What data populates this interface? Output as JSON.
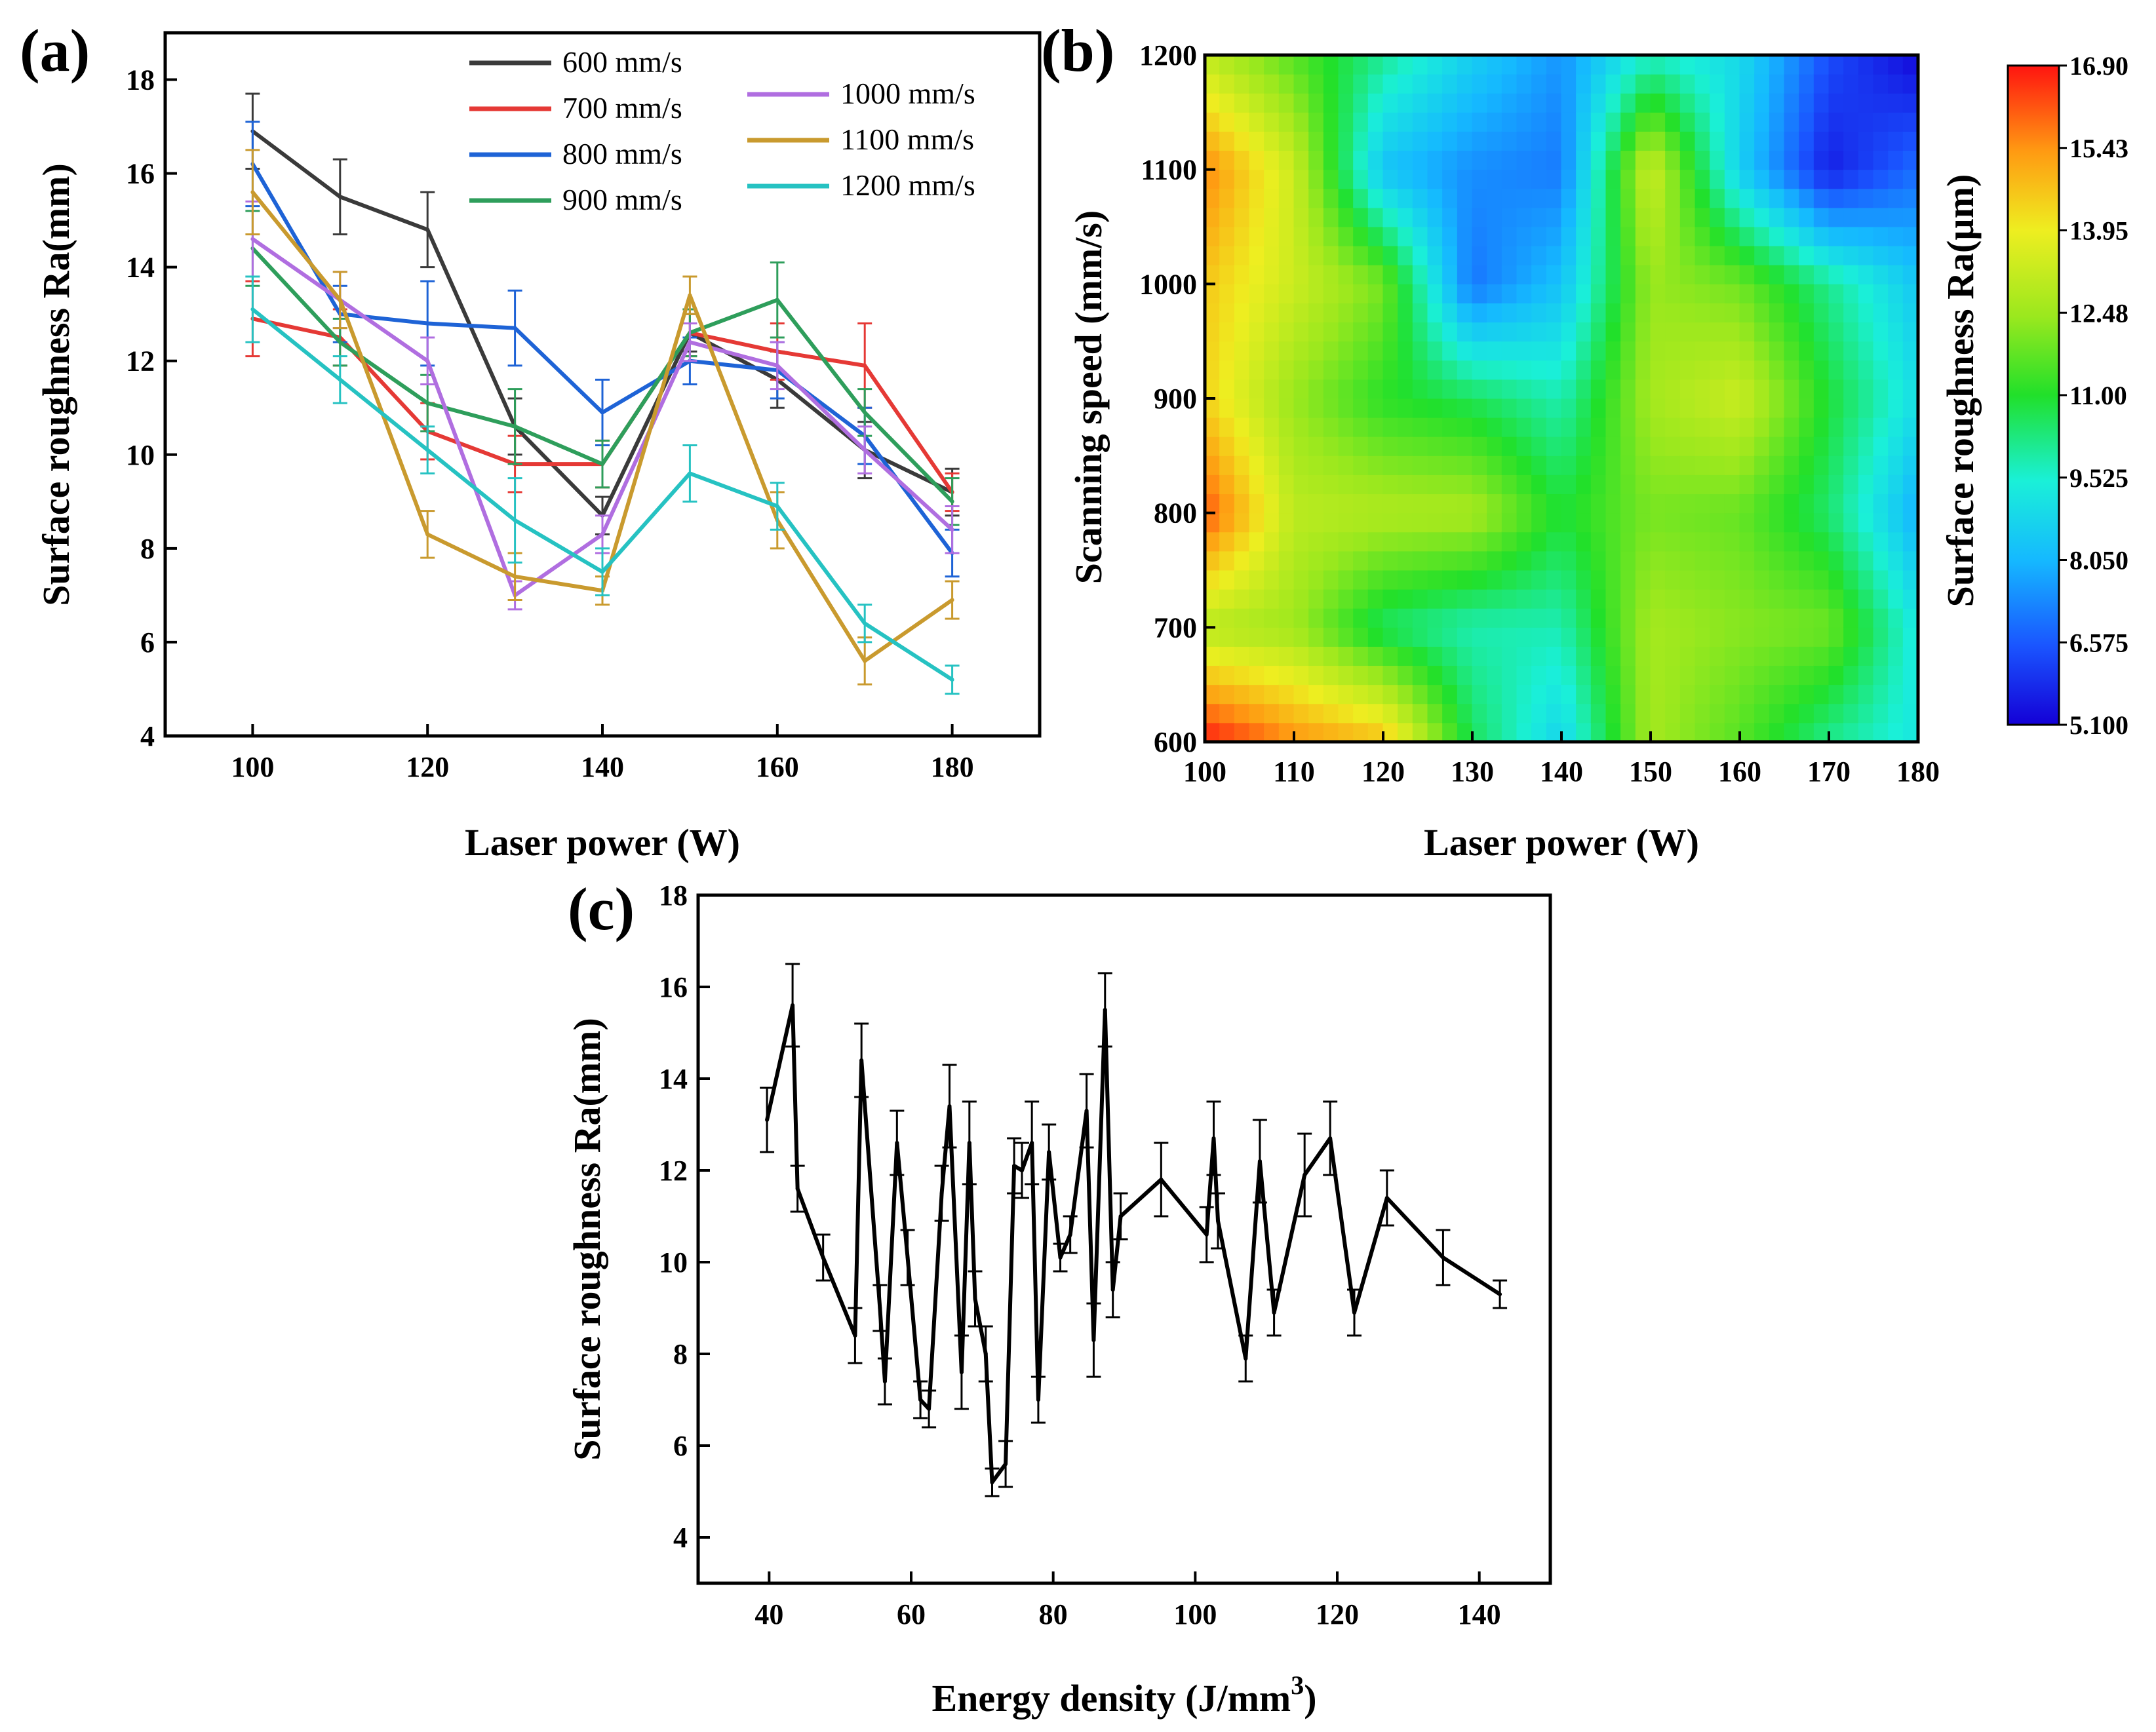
{
  "chart_data": [
    {
      "id": "a",
      "type": "line",
      "panel_label": "(a)",
      "xlabel": "Laser power (W)",
      "ylabel": "Surface roughness Ra(mm)",
      "xlim": [
        90,
        190
      ],
      "ylim": [
        4,
        19
      ],
      "xticks": [
        100,
        120,
        140,
        160,
        180
      ],
      "yticks": [
        4,
        6,
        8,
        10,
        12,
        14,
        16,
        18
      ],
      "x": [
        100,
        110,
        120,
        130,
        140,
        150,
        160,
        170,
        180
      ],
      "legend_position": "top-center",
      "series": [
        {
          "name": "600 mm/s",
          "color": "#3a3a3a",
          "values": [
            16.9,
            15.5,
            14.8,
            10.6,
            8.7,
            12.6,
            11.6,
            10.1,
            9.2
          ],
          "errors": [
            0.8,
            0.8,
            0.8,
            0.6,
            0.4,
            0.4,
            0.6,
            0.6,
            0.5
          ]
        },
        {
          "name": "700 mm/s",
          "color": "#e53935",
          "values": [
            12.9,
            12.5,
            10.5,
            9.8,
            9.8,
            12.6,
            12.2,
            11.9,
            9.2
          ],
          "errors": [
            0.8,
            0.6,
            0.6,
            0.6,
            0.5,
            0.5,
            0.6,
            0.9,
            0.4
          ]
        },
        {
          "name": "800 mm/s",
          "color": "#1e63d6",
          "values": [
            16.2,
            13.0,
            12.8,
            12.7,
            10.9,
            12.0,
            11.8,
            10.4,
            7.9
          ],
          "errors": [
            0.9,
            0.6,
            0.9,
            0.8,
            0.7,
            0.5,
            0.6,
            0.6,
            0.5
          ]
        },
        {
          "name": "900 mm/s",
          "color": "#2e9e5b",
          "values": [
            14.4,
            12.4,
            11.1,
            10.6,
            9.8,
            12.6,
            13.3,
            10.9,
            9.0
          ],
          "errors": [
            0.8,
            0.5,
            0.6,
            0.8,
            0.5,
            0.5,
            0.8,
            0.5,
            0.5
          ]
        },
        {
          "name": "1000 mm/s",
          "color": "#b06ee0",
          "values": [
            14.6,
            13.3,
            12.0,
            7.0,
            8.3,
            12.4,
            11.9,
            10.1,
            8.4
          ],
          "errors": [
            0.8,
            0.6,
            0.5,
            0.3,
            0.4,
            0.4,
            0.5,
            0.5,
            0.5
          ]
        },
        {
          "name": "1100 mm/s",
          "color": "#c99a2e",
          "values": [
            15.6,
            13.3,
            8.3,
            7.4,
            7.1,
            13.4,
            8.6,
            5.6,
            6.9
          ],
          "errors": [
            0.9,
            0.6,
            0.5,
            0.5,
            0.3,
            0.4,
            0.6,
            0.5,
            0.4
          ]
        },
        {
          "name": "1200 mm/s",
          "color": "#26c2c2",
          "values": [
            13.1,
            11.6,
            10.1,
            8.6,
            7.5,
            9.6,
            8.9,
            6.4,
            5.2
          ],
          "errors": [
            0.7,
            0.5,
            0.5,
            0.9,
            0.5,
            0.6,
            0.5,
            0.4,
            0.3
          ]
        }
      ]
    },
    {
      "id": "b",
      "type": "heatmap",
      "panel_label": "(b)",
      "xlabel": "Laser power (W)",
      "ylabel": "Scanning speed (mm/s)",
      "colorbar_label": "Surface roughness Ra(µm)",
      "x": [
        100,
        110,
        120,
        130,
        140,
        150,
        160,
        170,
        180
      ],
      "y": [
        600,
        700,
        800,
        900,
        1000,
        1100,
        1200
      ],
      "xticks": [
        100,
        110,
        120,
        130,
        140,
        150,
        160,
        170,
        180
      ],
      "yticks": [
        600,
        700,
        800,
        900,
        1000,
        1100,
        1200
      ],
      "zlim": [
        5.1,
        16.9
      ],
      "colorbar_ticks": [
        "5.100",
        "6.575",
        "8.050",
        "9.525",
        "11.00",
        "12.48",
        "13.95",
        "15.43",
        "16.90"
      ],
      "z": [
        [
          16.9,
          15.5,
          14.8,
          10.6,
          8.7,
          12.6,
          11.6,
          10.1,
          9.2
        ],
        [
          12.9,
          12.5,
          10.5,
          9.8,
          9.8,
          12.6,
          12.2,
          11.9,
          9.2
        ],
        [
          16.2,
          13.0,
          12.8,
          12.7,
          10.9,
          12.0,
          11.8,
          10.4,
          7.9
        ],
        [
          14.4,
          12.4,
          11.1,
          10.6,
          9.8,
          12.6,
          13.3,
          10.9,
          9.0
        ],
        [
          14.6,
          13.3,
          12.0,
          7.0,
          8.3,
          12.4,
          11.9,
          10.1,
          8.4
        ],
        [
          15.6,
          13.3,
          8.3,
          7.4,
          7.1,
          13.4,
          8.6,
          5.6,
          6.9
        ],
        [
          13.1,
          11.6,
          10.1,
          8.6,
          7.5,
          9.6,
          8.9,
          6.4,
          5.2
        ]
      ]
    },
    {
      "id": "c",
      "type": "line",
      "panel_label": "(c)",
      "xlabel": "Energy density (J/mm",
      "xlabel_sup": "3",
      "xlabel_end": ")",
      "ylabel": "Surface roughness Ra(mm)",
      "xlim": [
        30,
        150
      ],
      "ylim": [
        3,
        18
      ],
      "xticks": [
        40,
        60,
        80,
        100,
        120,
        140
      ],
      "yticks": [
        4,
        6,
        8,
        10,
        12,
        14,
        16,
        18
      ],
      "x": [
        39.7,
        43.3,
        44.0,
        47.6,
        52.1,
        53.0,
        55.6,
        56.3,
        58.0,
        59.5,
        61.3,
        62.5,
        64.3,
        65.4,
        67.1,
        68.2,
        69.0,
        70.5,
        71.4,
        73.3,
        74.5,
        75.6,
        77.0,
        77.9,
        79.4,
        81.0,
        82.4,
        84.7,
        85.7,
        87.3,
        88.4,
        89.5,
        95.2,
        101.6,
        102.6,
        103.2,
        107.1,
        109.1,
        111.1,
        115.4,
        119.0,
        122.4,
        127.0,
        134.9,
        142.9
      ],
      "values": [
        13.1,
        15.6,
        11.6,
        10.1,
        8.4,
        14.4,
        9.0,
        7.4,
        12.6,
        10.1,
        7.0,
        6.8,
        11.5,
        13.4,
        7.6,
        12.6,
        9.2,
        8.0,
        5.2,
        5.6,
        12.1,
        12.0,
        12.6,
        7.0,
        12.4,
        10.1,
        10.6,
        13.3,
        8.3,
        15.5,
        9.4,
        11.0,
        11.8,
        10.6,
        12.7,
        10.9,
        7.9,
        12.2,
        8.9,
        11.9,
        12.7,
        8.9,
        11.4,
        10.1,
        9.3
      ],
      "errors": [
        0.7,
        0.9,
        0.5,
        0.5,
        0.6,
        0.8,
        0.5,
        0.5,
        0.7,
        0.6,
        0.4,
        0.4,
        0.6,
        0.9,
        0.8,
        0.9,
        0.6,
        0.6,
        0.3,
        0.5,
        0.6,
        0.6,
        0.9,
        0.5,
        0.6,
        0.3,
        0.4,
        0.8,
        0.8,
        0.8,
        0.6,
        0.5,
        0.8,
        0.6,
        0.8,
        0.6,
        0.5,
        0.9,
        0.5,
        0.9,
        0.8,
        0.5,
        0.6,
        0.6,
        0.3
      ],
      "color": "#000000"
    }
  ]
}
